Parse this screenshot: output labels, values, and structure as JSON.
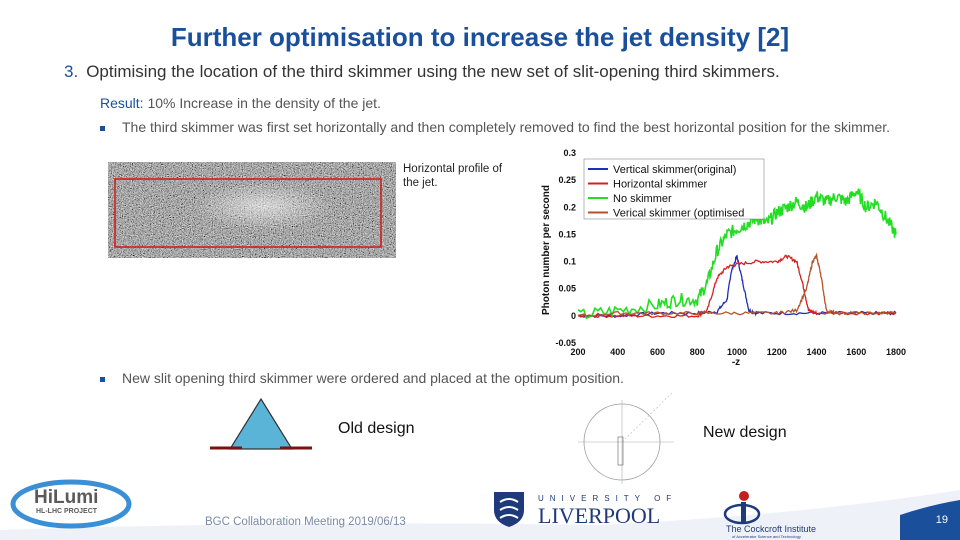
{
  "title": "Further optimisation to increase the jet density [2]",
  "point": {
    "number": "3.",
    "text": "Optimising the location of the third skimmer using the new set of slit-opening third skimmers."
  },
  "result": {
    "label": "Result:",
    "text": "10% Increase in the density of the jet."
  },
  "bullets": [
    "The third skimmer was first set horizontally and then completely removed to find the best horizontal position for the skimmer.",
    "New slit opening third skimmer were ordered and placed at the optimum position."
  ],
  "profile_label": "Horizontal profile of the jet.",
  "old_design_label": "Old design",
  "new_design_label": "New design",
  "footer": "BGC Collaboration Meeting 2019/06/13",
  "page_number": "19",
  "logos": {
    "hilumi": "HiLumi",
    "hilumi_sub": "HL-LHC PROJECT",
    "liverpool_top": "UNIVERSITY OF",
    "liverpool_name": "LIVERPOOL",
    "cockcroft": "The Cockcroft Institute",
    "cockcroft_sub": "of Accelerator Science and Technology"
  },
  "colors": {
    "title": "#1a4f9c",
    "blue": "#1f2fb5",
    "red": "#d42020",
    "green": "#22dd22",
    "brown": "#b5532a"
  },
  "chart_data": {
    "type": "line",
    "xlabel": "-z",
    "ylabel": "Photon number per second",
    "xlim": [
      200,
      1800
    ],
    "ylim": [
      -0.05,
      0.3
    ],
    "x_ticks": [
      "200",
      "400",
      "600",
      "800",
      "1000",
      "1200",
      "1400",
      "1600",
      "1800"
    ],
    "y_ticks": [
      "-0.05",
      "0",
      "0.05",
      "0.1",
      "0.15",
      "0.2",
      "0.25",
      "0.3"
    ],
    "legend_position": "top-right",
    "series": [
      {
        "name": "Vertical skimmer(original)",
        "color": "#1f2fb5",
        "x": [
          200,
          400,
          600,
          800,
          900,
          950,
          970,
          1000,
          1030,
          1060,
          1100,
          1300,
          1500,
          1700,
          1800
        ],
        "y": [
          0.0,
          0.0,
          0.005,
          0.005,
          0.008,
          0.03,
          0.08,
          0.11,
          0.06,
          0.01,
          0.005,
          0.005,
          0.005,
          0.005,
          0.005
        ]
      },
      {
        "name": "Horizontal skimmer",
        "color": "#d42020",
        "x": [
          200,
          400,
          600,
          800,
          850,
          900,
          950,
          1000,
          1100,
          1200,
          1250,
          1300,
          1330,
          1360,
          1400,
          1600,
          1800
        ],
        "y": [
          0.0,
          0.0,
          0.0,
          0.0,
          0.01,
          0.07,
          0.09,
          0.095,
          0.1,
          0.1,
          0.11,
          0.1,
          0.06,
          0.01,
          0.005,
          0.005,
          0.005
        ]
      },
      {
        "name": "No skimmer",
        "color": "#22dd22",
        "x": [
          200,
          400,
          600,
          700,
          800,
          850,
          900,
          950,
          1000,
          1050,
          1100,
          1150,
          1200,
          1250,
          1300,
          1350,
          1400,
          1450,
          1500,
          1550,
          1600,
          1650,
          1700,
          1750,
          1800
        ],
        "y": [
          0.0,
          0.01,
          0.02,
          0.03,
          0.03,
          0.06,
          0.12,
          0.15,
          0.16,
          0.17,
          0.18,
          0.17,
          0.19,
          0.2,
          0.21,
          0.2,
          0.22,
          0.21,
          0.22,
          0.21,
          0.23,
          0.2,
          0.21,
          0.18,
          0.15
        ]
      },
      {
        "name": "Verical skimmer (optimised",
        "color": "#b5532a",
        "x": [
          200,
          400,
          600,
          800,
          1000,
          1200,
          1300,
          1350,
          1380,
          1400,
          1420,
          1450,
          1500,
          1600,
          1800
        ],
        "y": [
          0.0,
          0.005,
          0.005,
          0.005,
          0.005,
          0.005,
          0.01,
          0.05,
          0.1,
          0.11,
          0.08,
          0.01,
          0.005,
          0.005,
          0.005
        ]
      }
    ]
  }
}
